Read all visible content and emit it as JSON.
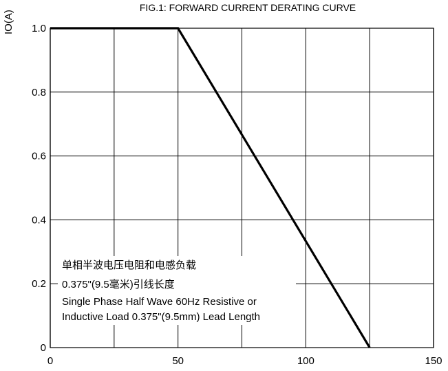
{
  "chart_data": {
    "type": "line",
    "title": "FIG.1: FORWARD CURRENT  DERATING CURVE",
    "ylabel": "IO(A)",
    "xlabel": "",
    "xlim": [
      0,
      150
    ],
    "ylim": [
      0,
      1.0
    ],
    "x_ticks": [
      "0",
      "50",
      "100",
      "150"
    ],
    "y_ticks": [
      "0",
      "0.2",
      "0.4",
      "0.6",
      "0.8",
      "1.0"
    ],
    "x_gridlines": [
      0,
      25,
      50,
      75,
      100,
      125,
      150
    ],
    "y_gridlines": [
      0,
      0.2,
      0.4,
      0.6,
      0.8,
      1.0
    ],
    "grid": true,
    "series": [
      {
        "x": [
          0,
          50,
          125
        ],
        "y": [
          1.0,
          1.0,
          0
        ],
        "color": "#000000"
      }
    ],
    "annotations": [
      "单相半波电压电阻和电感负载",
      "0.375\"(9.5毫米)引线长度",
      "Single Phase Half Wave 60Hz Resistive or",
      "Inductive Load 0.375\"(9.5mm) Lead Length"
    ]
  }
}
